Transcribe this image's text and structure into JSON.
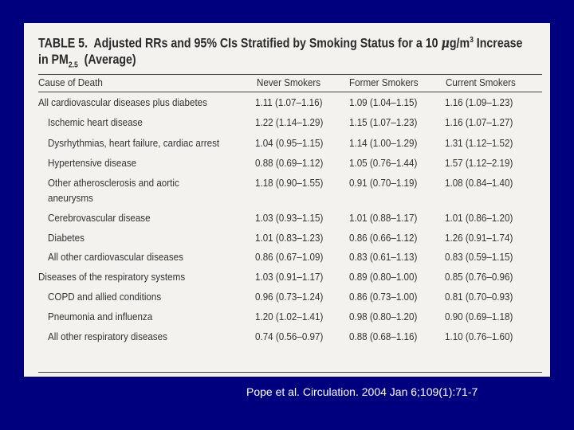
{
  "table": {
    "title_line1_pre": "TABLE 5.",
    "title_line1_main": "Adjusted RRs and 95% CIs Stratified by Smoking Status for a 10",
    "title_unit_mu": "μ",
    "title_unit_rest": "g/m",
    "title_unit_sup": "3",
    "title_line1_end": "Increase",
    "title_line2_pre": "in PM",
    "title_line2_sub": "2.5",
    "title_line2_end": "(Average)",
    "headers": [
      "Cause of Death",
      "Never Smokers",
      "Former Smokers",
      "Current Smokers"
    ],
    "rows": [
      {
        "cause": "All cardiovascular diseases plus diabetes",
        "never": "1.11 (1.07–1.16)",
        "former": "1.09 (1.04–1.15)",
        "current": "1.16 (1.09–1.23)"
      },
      {
        "cause": "Ischemic heart disease",
        "never": "1.22 (1.14–1.29)",
        "former": "1.15 (1.07–1.23)",
        "current": "1.16 (1.07–1.27)"
      },
      {
        "cause": "Dysrhythmias, heart failure, cardiac arrest",
        "never": "1.04 (0.95–1.15)",
        "former": "1.14 (1.00–1.29)",
        "current": "1.31 (1.12–1.52)"
      },
      {
        "cause": "Hypertensive disease",
        "never": "0.88 (0.69–1.12)",
        "former": "1.05 (0.76–1.44)",
        "current": "1.57 (1.12–2.19)"
      },
      {
        "cause": "Other atherosclerosis and aortic",
        "cause_line2": "aneurysms",
        "never": "1.18 (0.90–1.55)",
        "former": "0.91 (0.70–1.19)",
        "current": "1.08 (0.84–1.40)"
      },
      {
        "cause": "Cerebrovascular disease",
        "never": "1.03 (0.93–1.15)",
        "former": "1.01 (0.88–1.17)",
        "current": "1.01 (0.86–1.20)"
      },
      {
        "cause": "Diabetes",
        "never": "1.01 (0.83–1.23)",
        "former": "0.86 (0.66–1.12)",
        "current": "1.26 (0.91–1.74)"
      },
      {
        "cause": "All other cardiovascular diseases",
        "never": "0.86 (0.67–1.09)",
        "former": "0.83 (0.61–1.13)",
        "current": "0.83 (0.59–1.15)"
      },
      {
        "cause": "Diseases of the respiratory systems",
        "never": "1.03 (0.91–1.17)",
        "former": "0.89 (0.80–1.00)",
        "current": "0.85 (0.76–0.96)"
      },
      {
        "cause": "COPD and allied conditions",
        "never": "0.96 (0.73–1.24)",
        "former": "0.86 (0.73–1.00)",
        "current": "0.81 (0.70–0.93)"
      },
      {
        "cause": "Pneumonia and influenza",
        "never": "1.20 (1.02–1.41)",
        "former": "0.98 (0.80–1.20)",
        "current": "0.90 (0.69–1.18)"
      },
      {
        "cause": "All other respiratory diseases",
        "never": "0.74 (0.56–0.97)",
        "former": "0.88 (0.68–1.16)",
        "current": "1.10 (0.76–1.60)"
      }
    ]
  },
  "citation": "Pope et al. Circulation. 2004 Jan 6;109(1):71-7"
}
